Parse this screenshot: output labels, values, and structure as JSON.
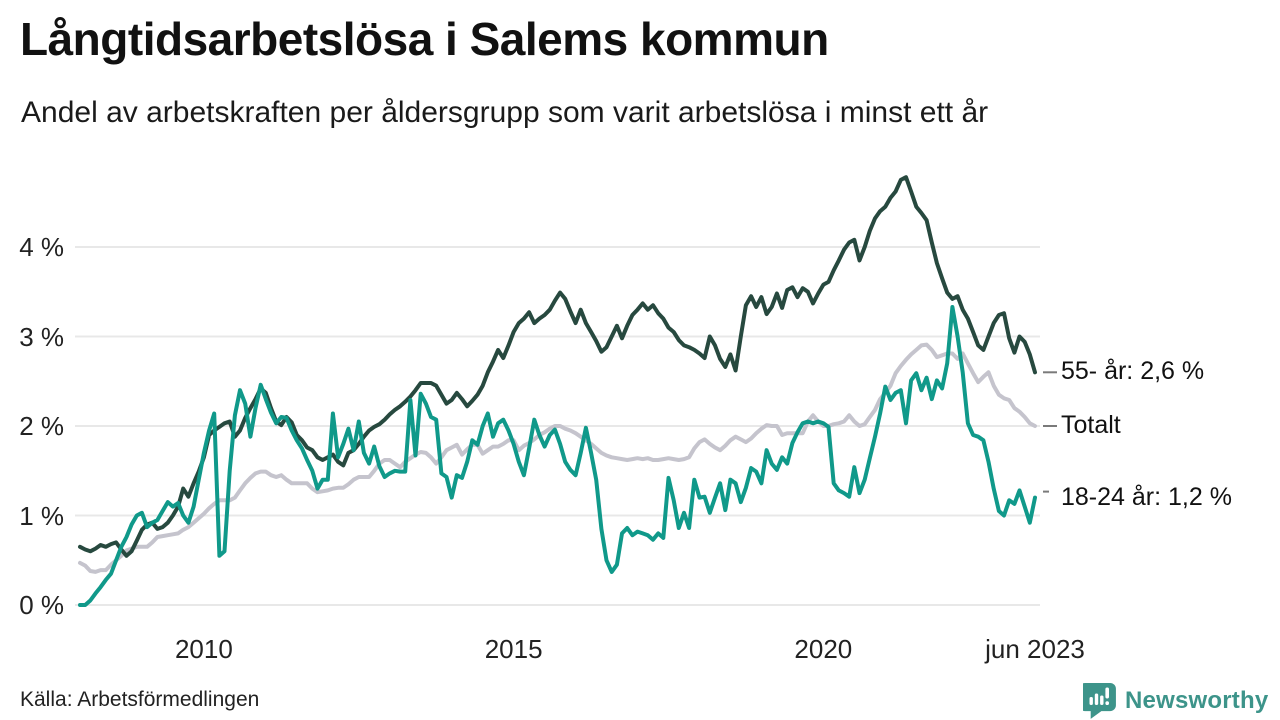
{
  "chart_data": {
    "type": "line",
    "title": "Långtidsarbetslösa i Salems kommun",
    "subtitle": "Andel av arbetskraften per åldersgrupp som varit arbetslösa i minst ett år",
    "x_unit": "month",
    "x_start": "2008-01",
    "x_end": "2023-06",
    "ylim": [
      0,
      5
    ],
    "grid": "horizontal",
    "legend_position": "right-end-labels",
    "y_ticks": [
      {
        "value": 0,
        "label": "0 %"
      },
      {
        "value": 1,
        "label": "1 %"
      },
      {
        "value": 2,
        "label": "2 %"
      },
      {
        "value": 3,
        "label": "3 %"
      },
      {
        "value": 4,
        "label": "4 %"
      }
    ],
    "x_ticks": [
      {
        "month_index": 24,
        "label": "2010"
      },
      {
        "month_index": 84,
        "label": "2015"
      },
      {
        "month_index": 144,
        "label": "2020"
      },
      {
        "month_index": 185,
        "label": "jun 2023"
      }
    ],
    "series": [
      {
        "name": "Totalt",
        "color": "#c5c4cd",
        "end_label": "Totalt",
        "last_value": 2.0,
        "values": [
          0.47,
          0.44,
          0.38,
          0.37,
          0.39,
          0.39,
          0.45,
          0.5,
          0.55,
          0.61,
          0.63,
          0.65,
          0.65,
          0.65,
          0.7,
          0.76,
          0.77,
          0.78,
          0.79,
          0.8,
          0.84,
          0.87,
          0.92,
          0.97,
          1.02,
          1.08,
          1.13,
          1.17,
          1.17,
          1.17,
          1.2,
          1.28,
          1.36,
          1.42,
          1.47,
          1.49,
          1.49,
          1.45,
          1.43,
          1.45,
          1.4,
          1.36,
          1.36,
          1.36,
          1.36,
          1.3,
          1.26,
          1.27,
          1.28,
          1.3,
          1.31,
          1.31,
          1.35,
          1.4,
          1.43,
          1.43,
          1.43,
          1.5,
          1.58,
          1.62,
          1.62,
          1.58,
          1.54,
          1.6,
          1.64,
          1.68,
          1.71,
          1.7,
          1.65,
          1.58,
          1.65,
          1.73,
          1.76,
          1.79,
          1.68,
          1.74,
          1.79,
          1.79,
          1.69,
          1.73,
          1.77,
          1.77,
          1.8,
          1.84,
          1.84,
          1.73,
          1.78,
          1.81,
          1.85,
          1.9,
          1.93,
          1.97,
          2.0,
          2.0,
          1.97,
          1.95,
          1.92,
          1.88,
          1.84,
          1.8,
          1.75,
          1.7,
          1.67,
          1.65,
          1.64,
          1.63,
          1.62,
          1.63,
          1.64,
          1.63,
          1.64,
          1.62,
          1.62,
          1.63,
          1.64,
          1.63,
          1.62,
          1.63,
          1.65,
          1.75,
          1.82,
          1.85,
          1.8,
          1.76,
          1.73,
          1.78,
          1.84,
          1.88,
          1.85,
          1.82,
          1.86,
          1.92,
          1.97,
          2.01,
          2.0,
          2.0,
          1.9,
          1.92,
          1.92,
          1.92,
          1.92,
          2.05,
          2.12,
          2.05,
          2.0,
          2.0,
          2.02,
          2.03,
          2.05,
          2.12,
          2.05,
          2.0,
          2.02,
          2.1,
          2.18,
          2.3,
          2.37,
          2.45,
          2.59,
          2.67,
          2.74,
          2.8,
          2.85,
          2.9,
          2.91,
          2.85,
          2.77,
          2.79,
          2.81,
          2.81,
          2.75,
          2.81,
          2.7,
          2.59,
          2.49,
          2.55,
          2.6,
          2.45,
          2.35,
          2.31,
          2.29,
          2.2,
          2.16,
          2.1,
          2.03,
          2.0
        ]
      },
      {
        "name": "55- år",
        "color": "#27493f",
        "end_label": "55- år: 2,6 %",
        "last_value": 2.6,
        "values": [
          0.65,
          0.62,
          0.6,
          0.63,
          0.67,
          0.65,
          0.68,
          0.7,
          0.62,
          0.55,
          0.6,
          0.72,
          0.84,
          0.9,
          0.92,
          0.85,
          0.87,
          0.92,
          1.0,
          1.1,
          1.3,
          1.21,
          1.36,
          1.49,
          1.65,
          1.9,
          1.95,
          1.99,
          2.03,
          2.05,
          1.88,
          1.95,
          2.09,
          2.2,
          2.3,
          2.42,
          2.37,
          2.2,
          2.05,
          2.01,
          2.1,
          2.04,
          1.9,
          1.84,
          1.76,
          1.73,
          1.65,
          1.62,
          1.65,
          1.68,
          1.6,
          1.56,
          1.7,
          1.73,
          1.8,
          1.88,
          1.95,
          1.99,
          2.02,
          2.07,
          2.13,
          2.18,
          2.22,
          2.27,
          2.33,
          2.4,
          2.48,
          2.48,
          2.48,
          2.45,
          2.35,
          2.25,
          2.29,
          2.37,
          2.3,
          2.22,
          2.28,
          2.35,
          2.45,
          2.6,
          2.72,
          2.85,
          2.76,
          2.9,
          3.05,
          3.15,
          3.2,
          3.27,
          3.15,
          3.2,
          3.24,
          3.3,
          3.4,
          3.49,
          3.42,
          3.28,
          3.15,
          3.3,
          3.15,
          3.05,
          2.95,
          2.83,
          2.88,
          3.0,
          3.12,
          2.98,
          3.12,
          3.24,
          3.3,
          3.37,
          3.3,
          3.35,
          3.26,
          3.2,
          3.1,
          3.05,
          2.96,
          2.9,
          2.88,
          2.85,
          2.81,
          2.76,
          3.0,
          2.9,
          2.75,
          2.66,
          2.8,
          2.62,
          3.0,
          3.35,
          3.45,
          3.33,
          3.44,
          3.25,
          3.33,
          3.48,
          3.32,
          3.52,
          3.55,
          3.44,
          3.54,
          3.5,
          3.37,
          3.48,
          3.58,
          3.61,
          3.74,
          3.85,
          3.97,
          4.05,
          4.08,
          3.85,
          4.0,
          4.18,
          4.32,
          4.4,
          4.45,
          4.55,
          4.62,
          4.75,
          4.78,
          4.62,
          4.45,
          4.38,
          4.3,
          4.05,
          3.82,
          3.65,
          3.49,
          3.42,
          3.45,
          3.3,
          3.2,
          3.05,
          2.9,
          2.85,
          3.0,
          3.15,
          3.24,
          3.26,
          2.98,
          2.82,
          3.0,
          2.94,
          2.8,
          2.6
        ]
      },
      {
        "name": "18-24 år",
        "color": "#10998a",
        "end_label": "18-24 år: 1,2 %",
        "last_value": 1.2,
        "values": [
          0.0,
          0.0,
          0.05,
          0.13,
          0.2,
          0.28,
          0.35,
          0.5,
          0.65,
          0.76,
          0.9,
          1.0,
          1.03,
          0.87,
          0.92,
          0.95,
          1.05,
          1.15,
          1.1,
          1.14,
          1.0,
          0.92,
          1.1,
          1.4,
          1.7,
          1.95,
          2.14,
          0.55,
          0.6,
          1.5,
          2.12,
          2.4,
          2.25,
          1.88,
          2.2,
          2.46,
          2.3,
          2.15,
          2.03,
          2.1,
          2.09,
          1.95,
          1.84,
          1.75,
          1.62,
          1.5,
          1.3,
          1.4,
          1.4,
          2.14,
          1.65,
          1.8,
          1.97,
          1.73,
          2.05,
          1.7,
          1.58,
          1.77,
          1.55,
          1.43,
          1.47,
          1.5,
          1.49,
          1.49,
          2.29,
          1.67,
          2.36,
          2.25,
          2.1,
          2.07,
          1.47,
          1.43,
          1.2,
          1.45,
          1.42,
          1.6,
          1.84,
          1.79,
          2.0,
          2.14,
          1.88,
          2.03,
          2.07,
          1.95,
          1.8,
          1.6,
          1.45,
          1.75,
          2.07,
          1.9,
          1.77,
          1.9,
          1.96,
          1.8,
          1.6,
          1.51,
          1.45,
          1.7,
          1.98,
          1.7,
          1.4,
          0.85,
          0.5,
          0.37,
          0.45,
          0.8,
          0.86,
          0.78,
          0.82,
          0.8,
          0.78,
          0.73,
          0.8,
          0.75,
          1.42,
          1.17,
          0.86,
          1.03,
          0.86,
          1.4,
          1.2,
          1.21,
          1.03,
          1.2,
          1.36,
          1.06,
          1.4,
          1.36,
          1.15,
          1.31,
          1.53,
          1.49,
          1.36,
          1.73,
          1.58,
          1.51,
          1.65,
          1.58,
          1.81,
          1.93,
          2.03,
          2.05,
          2.03,
          2.05,
          2.03,
          1.99,
          1.36,
          1.28,
          1.25,
          1.21,
          1.54,
          1.25,
          1.4,
          1.64,
          1.88,
          2.14,
          2.44,
          2.29,
          2.37,
          2.4,
          2.03,
          2.51,
          2.59,
          2.4,
          2.54,
          2.3,
          2.51,
          2.42,
          2.7,
          3.33,
          3.0,
          2.6,
          2.03,
          1.9,
          1.88,
          1.84,
          1.6,
          1.3,
          1.05,
          1.0,
          1.17,
          1.13,
          1.28,
          1.1,
          0.92,
          1.2
        ]
      }
    ]
  },
  "footer": {
    "source": "Källa: Arbetsförmedlingen",
    "brand": "Newsworthy",
    "brand_color": "#3d948a"
  },
  "style": {
    "gridline_color": "#e8e8e8",
    "background": "#ffffff"
  }
}
